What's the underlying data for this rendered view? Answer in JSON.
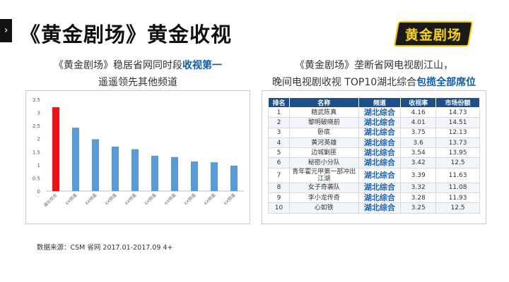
{
  "nav_glyph": "›",
  "title": "《黄金剧场》黄金收视",
  "logo_text": "黄金剧场",
  "left_heading": {
    "line1_a": "《黄金剧场》稳居省网同时段",
    "line1_b": "收视第一",
    "line2": "遥遥领先其他频道"
  },
  "right_heading": {
    "line1": "《黄金剧场》垄断省网电视剧江山，",
    "line2_a": "晚间电视剧收视 TOP10湖北综合",
    "line2_b": "包揽全部席位"
  },
  "chart_data": {
    "type": "bar",
    "categories": [
      "湖北综合",
      "XX频道",
      "XX频道",
      "XX频道",
      "XX频道",
      "XX频道",
      "XX频道",
      "XX频道",
      "XX频道",
      "XX频道"
    ],
    "values": [
      3.2,
      2.42,
      1.98,
      1.7,
      1.6,
      1.35,
      1.3,
      1.13,
      1.1,
      0.97
    ],
    "bar_colors": [
      "#e8141a",
      "#5b9bd5",
      "#5b9bd5",
      "#5b9bd5",
      "#5b9bd5",
      "#5b9bd5",
      "#5b9bd5",
      "#5b9bd5",
      "#5b9bd5",
      "#5b9bd5"
    ],
    "yticks": [
      "0",
      "0.5",
      "1",
      "1.5",
      "2",
      "2.5",
      "3",
      "3.5"
    ],
    "ylim": [
      0,
      3.5
    ],
    "grid": false
  },
  "table": {
    "headers": [
      "排名",
      "名称",
      "频道",
      "收视率",
      "市场份额"
    ],
    "rows": [
      [
        "1",
        "精武陈真",
        "湖北综合",
        "4.16",
        "14.73"
      ],
      [
        "2",
        "黎明破晓前",
        "湖北综合",
        "4.01",
        "14.51"
      ],
      [
        "3",
        "卧底",
        "湖北综合",
        "3.75",
        "12.13"
      ],
      [
        "4",
        "黄河英雄",
        "湖北综合",
        "3.6",
        "13.73"
      ],
      [
        "5",
        "边城剿匪",
        "湖北综合",
        "3.54",
        "13.95"
      ],
      [
        "6",
        "秘密小分队",
        "湖北综合",
        "3.42",
        "12.5"
      ],
      [
        "7",
        "青年霍元甲第一部冲出江湖",
        "湖北综合",
        "3.39",
        "11.63"
      ],
      [
        "8",
        "女子奇袭队",
        "湖北综合",
        "3.32",
        "11.08"
      ],
      [
        "9",
        "李小龙传奇",
        "湖北综合",
        "3.28",
        "11.93"
      ],
      [
        "10",
        "心如铁",
        "湖北综合",
        "3.25",
        "12.5"
      ]
    ]
  },
  "source": "数据来源：CSM  省网   2017.01-2017.09   4+"
}
